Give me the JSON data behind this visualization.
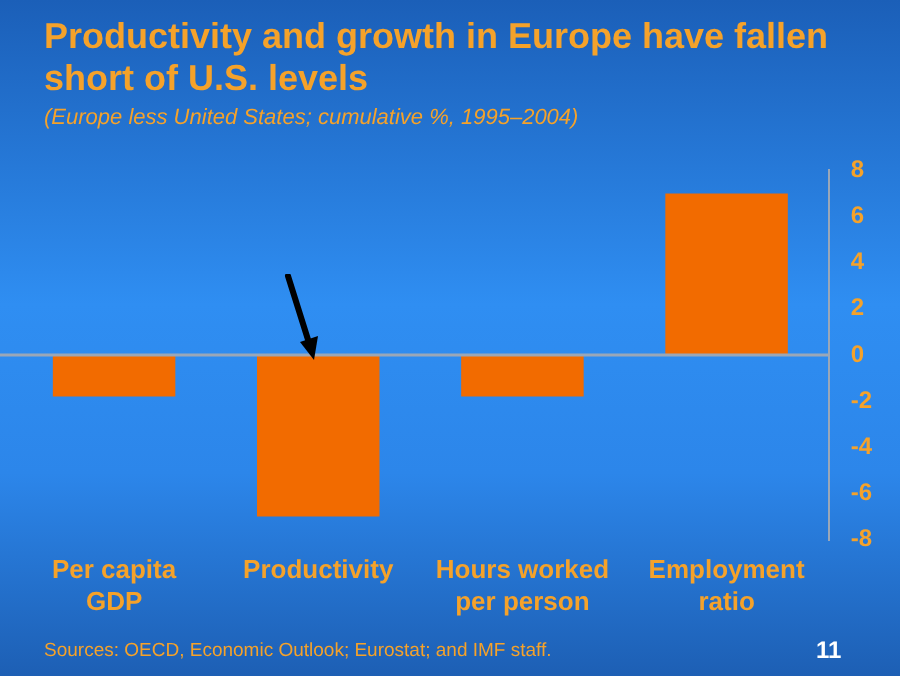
{
  "chart_data": {
    "type": "bar",
    "title": "Productivity and growth in Europe have fallen short of U.S. levels",
    "subtitle": "(Europe less United States; cumulative %, 1995–2004)",
    "categories": [
      "Per capita GDP",
      "Productivity",
      "Hours worked per person",
      "Employment ratio"
    ],
    "values": [
      -1.8,
      -7.0,
      -1.8,
      7.0
    ],
    "color": "#f26b00",
    "ref_lines": [
      {
        "axis": "y",
        "value": 0,
        "color": "#9aa7b8"
      }
    ],
    "ylim": [
      -8,
      8
    ],
    "yticks": [
      -8,
      -6,
      -4,
      -2,
      0,
      2,
      4,
      6,
      8
    ],
    "grid": false,
    "annotations": [
      "Sources: OECD, Economic Outlook; Eurostat; and IMF staff.",
      "11"
    ]
  }
}
